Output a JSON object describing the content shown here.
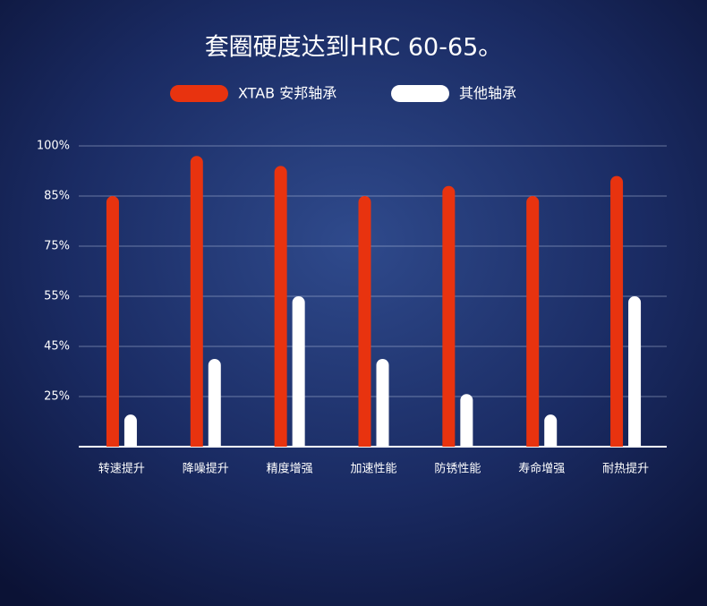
{
  "chart_data": {
    "type": "bar",
    "title": "套圈硬度达到HRC 60-65。",
    "categories": [
      "转速提升",
      "降噪提升",
      "精度增强",
      "加速性能",
      "防锈性能",
      "寿命增强",
      "耐热提升"
    ],
    "series": [
      {
        "name": "XTAB 安邦轴承",
        "color": "#e8330f",
        "values": [
          85,
          97,
          94,
          85,
          88,
          85,
          91
        ]
      },
      {
        "name": "其他轴承",
        "color": "#ffffff",
        "values": [
          16,
          40,
          55,
          40,
          26,
          16,
          55
        ]
      }
    ],
    "ylim": [
      0,
      100
    ],
    "yticks": [
      {
        "value": 25,
        "label": "25%"
      },
      {
        "value": 45,
        "label": "45%"
      },
      {
        "value": 55,
        "label": "55%"
      },
      {
        "value": 75,
        "label": "75%"
      },
      {
        "value": 85,
        "label": "85%"
      },
      {
        "value": 100,
        "label": "100%"
      }
    ],
    "yscale": "evenly-spaced-ticks",
    "grid": true
  }
}
